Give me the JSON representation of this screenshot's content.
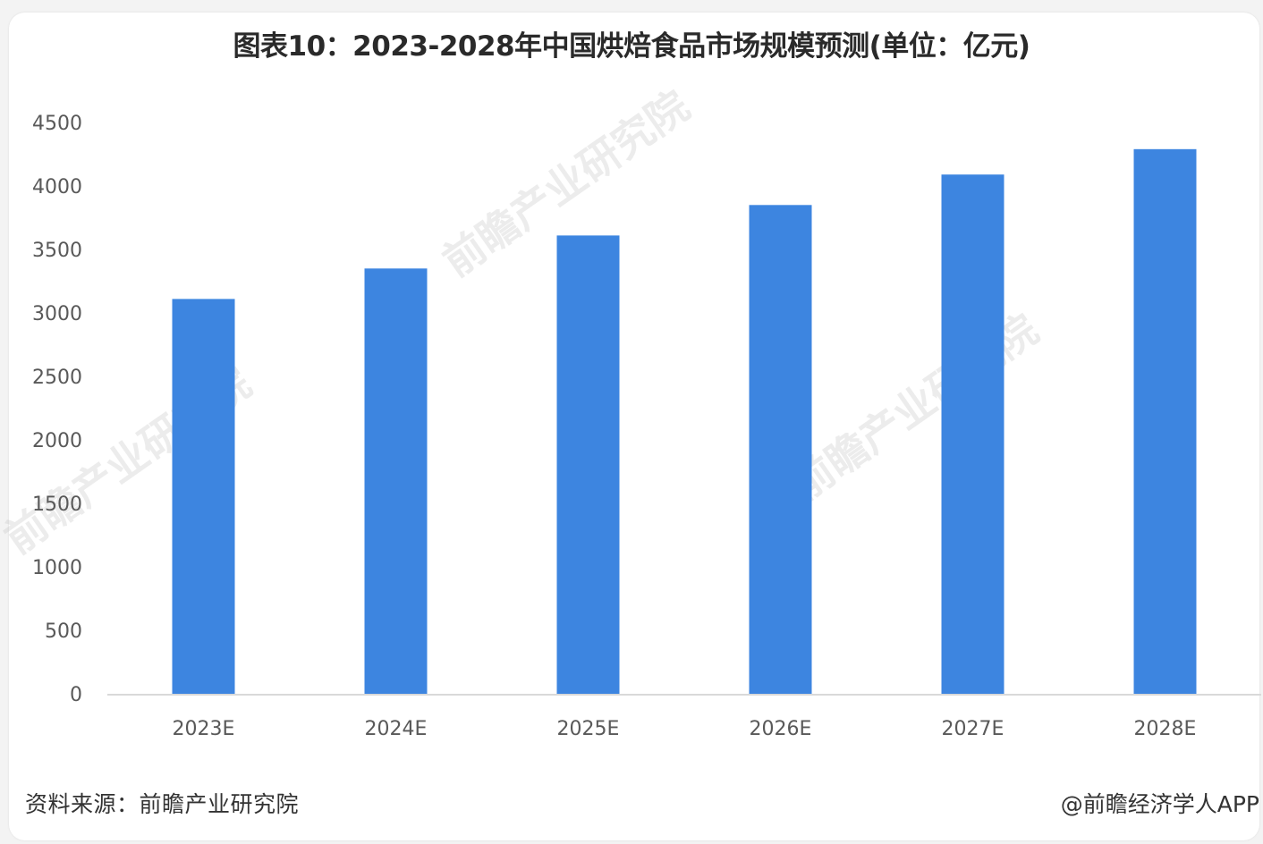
{
  "chart_data": {
    "type": "bar",
    "title": "图表10：2023-2028年中国烘焙食品市场规模预测(单位：亿元)",
    "categories": [
      "2023E",
      "2024E",
      "2025E",
      "2026E",
      "2027E",
      "2028E"
    ],
    "series": [
      {
        "values": [
          3110,
          3350,
          3610,
          3850,
          4090,
          4290
        ]
      }
    ],
    "ylim": [
      0,
      4500
    ],
    "yticks": [
      "0",
      "500",
      "1000",
      "1500",
      "2000",
      "2500",
      "3000",
      "3500",
      "4000",
      "4500"
    ],
    "grid": false,
    "legend": "none",
    "bar_color": "#3d85e0"
  },
  "source_label": "资料来源：前瞻产业研究院",
  "app_credit": "@前瞻经济学人APP",
  "watermark_text": "前瞻产业研究院"
}
